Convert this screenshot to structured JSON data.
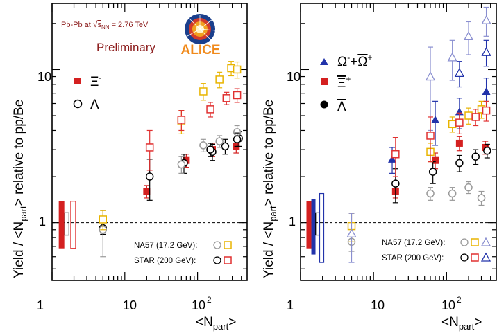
{
  "figure": {
    "ylabel_main": "Yield / <N",
    "ylabel_sub": "part",
    "ylabel_end": "> relative to pp/Be",
    "xlabel_main": "<N",
    "xlabel_sub": "part",
    "xlabel_end": ">",
    "collision_pre": "Pb-Pb at ",
    "collision_sqrt": "s",
    "collision_sub": "NN",
    "collision_post": " = 2.76 TeV",
    "preliminary": "Preliminary",
    "logo_text": "ALICE",
    "xtick_labels": [
      "1",
      "10",
      "10",
      "2"
    ],
    "ytick_labels": [
      "1",
      "10"
    ],
    "ref_na57": "NA57 (17.2 GeV):",
    "ref_star": "STAR (200 GeV):"
  },
  "colors": {
    "xi": "#d42020",
    "xi_open": "#e03030",
    "lambda": "#000000",
    "na57_lambda": "#999999",
    "na57_xi": "#e8b400",
    "omega": "#2233aa",
    "omega_open": "#8a8fd0"
  },
  "chart_data": [
    {
      "type": "scatter",
      "panel": "left",
      "x_scale": "log",
      "y_scale": "log",
      "xlim": [
        1,
        480
      ],
      "ylim": [
        0.42,
        27
      ],
      "legend": [
        "Ξ-",
        "Λ"
      ],
      "series": [
        {
          "name": "Ξ-",
          "style": "filled-square",
          "color": "#d42020",
          "x": [
            20,
            70,
            160,
            340
          ],
          "y": [
            1.6,
            2.55,
            3.0,
            3.15
          ],
          "err": [
            0.15,
            0.25,
            0.3,
            0.3
          ]
        },
        {
          "name": "Λ",
          "style": "open-circle",
          "color": "#000000",
          "x": [
            5,
            22,
            65,
            160,
            240,
            370
          ],
          "y": [
            0.92,
            2.0,
            2.45,
            2.9,
            3.15,
            3.55
          ],
          "err": [
            0.08,
            0.6,
            0.35,
            0.35,
            0.35,
            0.4
          ]
        },
        {
          "group": "NA57",
          "style": "open-circle",
          "color": "#999999",
          "x": [
            5,
            60,
            120,
            200,
            350
          ],
          "y": [
            0.9,
            2.4,
            3.2,
            3.4,
            3.9
          ],
          "err": [
            0.3,
            0.3,
            0.3,
            0.3,
            0.4
          ]
        },
        {
          "group": "NA57",
          "style": "open-square",
          "color": "#e8b400",
          "x": [
            5,
            60,
            120,
            200,
            290,
            350
          ],
          "y": [
            1.05,
            4.6,
            7.2,
            8.6,
            10.2,
            10.0
          ],
          "err": [
            0.15,
            0.8,
            0.9,
            1.0,
            1.1,
            1.2
          ]
        },
        {
          "group": "STAR",
          "style": "open-square",
          "color": "#e03030",
          "x": [
            22,
            60,
            150,
            250,
            350
          ],
          "y": [
            3.1,
            4.7,
            5.5,
            6.5,
            6.8
          ],
          "err": [
            0.9,
            0.7,
            0.6,
            0.6,
            0.7
          ]
        },
        {
          "group": "STAR",
          "style": "open-circle",
          "color": "#000000",
          "x": [
            150,
            350
          ],
          "y": [
            3.0,
            3.5
          ],
          "err": [
            0.3,
            0.35
          ]
        }
      ]
    },
    {
      "type": "scatter",
      "panel": "right",
      "x_scale": "log",
      "y_scale": "log",
      "xlim": [
        1,
        480
      ],
      "ylim": [
        0.42,
        27
      ],
      "legend": [
        "Ω-+Ω+",
        "Ξ+",
        "Λ"
      ],
      "series": [
        {
          "name": "Ω-+Ω+",
          "style": "filled-triangle",
          "color": "#2233aa",
          "x": [
            18,
            70,
            150,
            350
          ],
          "y": [
            2.6,
            4.7,
            5.3,
            7.2
          ],
          "err": [
            0.5,
            1.5,
            1.2,
            1.6
          ]
        },
        {
          "name": "Ξ+",
          "style": "filled-square",
          "color": "#d42020",
          "x": [
            20,
            70,
            150,
            340
          ],
          "y": [
            1.6,
            2.55,
            3.3,
            3.1
          ],
          "err": [
            0.15,
            0.3,
            0.35,
            0.3
          ]
        },
        {
          "name": "Λ",
          "style": "open-circle",
          "color": "#000000",
          "x": [
            20,
            65,
            150,
            250,
            360
          ],
          "y": [
            1.8,
            2.15,
            2.45,
            2.7,
            2.95
          ],
          "err": [
            0.45,
            0.35,
            0.3,
            0.3,
            0.3
          ]
        },
        {
          "group": "NA57",
          "style": "open-circle",
          "color": "#999999",
          "x": [
            5,
            60,
            120,
            200,
            300
          ],
          "y": [
            0.75,
            1.55,
            1.55,
            1.7,
            1.45
          ],
          "err": [
            0.1,
            0.15,
            0.15,
            0.15,
            0.15
          ]
        },
        {
          "group": "NA57",
          "style": "open-square",
          "color": "#e8b400",
          "x": [
            5,
            60,
            120,
            200,
            300
          ],
          "y": [
            0.95,
            2.9,
            4.4,
            5.0,
            5.5
          ],
          "err": [
            0.2,
            0.4,
            0.5,
            0.6,
            0.7
          ]
        },
        {
          "group": "NA57",
          "style": "open-triangle",
          "color": "#8a8fd0",
          "x": [
            5,
            60,
            120,
            200,
            350
          ],
          "y": [
            0.85,
            9.0,
            12.0,
            16.5,
            21.0
          ],
          "err": [
            0.3,
            5.0,
            3.5,
            4.0,
            4.5
          ]
        },
        {
          "group": "STAR",
          "style": "open-square",
          "color": "#e03030",
          "x": [
            20,
            60,
            150,
            250,
            350
          ],
          "y": [
            2.8,
            3.7,
            4.5,
            4.9,
            5.4
          ],
          "err": [
            0.8,
            1.2,
            0.7,
            0.6,
            0.8
          ]
        },
        {
          "group": "STAR",
          "style": "open-triangle",
          "color": "#2233aa",
          "x": [
            150,
            350
          ],
          "y": [
            9.5,
            13.0
          ],
          "err": [
            1.8,
            2.5
          ]
        }
      ]
    }
  ]
}
